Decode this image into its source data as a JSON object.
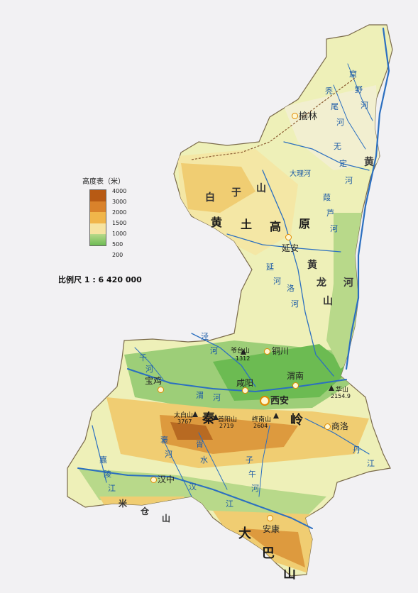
{
  "legend": {
    "title": "高度表（米）",
    "levels": [
      {
        "label": "4000",
        "color": "#b75a14"
      },
      {
        "label": "3000",
        "color": "#d9822b"
      },
      {
        "label": "2000",
        "color": "#f0b54a"
      },
      {
        "label": "1500",
        "color": "#f6e3a0"
      },
      {
        "label": "1000",
        "color": "#b8d98a"
      },
      {
        "label": "500",
        "color": "#6dbb54"
      },
      {
        "label": "200",
        "color": ""
      }
    ]
  },
  "scale": "比例尺 1 : 6 420 000",
  "cities": {
    "yulin": "榆林",
    "yanan": "延安",
    "tongchuan": "铜川",
    "baoji": "宝鸡",
    "xianyang": "咸阳",
    "xian": "西安",
    "weinan": "渭南",
    "shangluo": "商洛",
    "hanzhong": "汉中",
    "ankang": "安康"
  },
  "peaks": {
    "taibai": {
      "name": "太白山",
      "height": "3767"
    },
    "shouyang": {
      "name": "首阳山",
      "height": "2719"
    },
    "zhongnan": {
      "name": "终南山",
      "height": "2604"
    },
    "huashan": {
      "name": "华山",
      "height": "2154.9"
    },
    "yetai": {
      "name": "爷台山",
      "height": "1312"
    }
  },
  "regions": {
    "loess": [
      "黄",
      "土",
      "高",
      "原"
    ],
    "baiyu": [
      "白",
      "于",
      "山"
    ],
    "qinling": [
      "秦",
      "岭"
    ],
    "daba": [
      "大",
      "巴",
      "山"
    ],
    "huanglong": [
      "黄",
      "龙",
      "山"
    ],
    "micang": [
      "米",
      "仓",
      "山"
    ]
  },
  "rivers": {
    "huanghe": [
      "黄",
      "河"
    ],
    "wuding": [
      "无",
      "定",
      "河"
    ],
    "dali": "大理河",
    "yanhe": [
      "延",
      "河"
    ],
    "luohe": [
      "洛",
      "河"
    ],
    "jinghe": [
      "泾",
      "河"
    ],
    "weihe": [
      "渭",
      "河"
    ],
    "hanjiang": [
      "汉",
      "江"
    ],
    "danjiang": [
      "丹",
      "江"
    ],
    "kuye": [
      "窟",
      "野",
      "河"
    ],
    "tuwei": [
      "秃",
      "尾",
      "河"
    ],
    "jialu": [
      "葭",
      "芦",
      "河"
    ],
    "qianhe": [
      "千",
      "河"
    ],
    "jialing": [
      "嘉",
      "陵",
      "江"
    ],
    "bao": [
      "褒",
      "河"
    ],
    "xushui": [
      "胥",
      "水"
    ],
    "ziwu": [
      "子",
      "午",
      "河"
    ]
  },
  "colors": {
    "plateau": "#f4e7a5",
    "highland": "#f0cd72",
    "mountain": "#dd9a3e",
    "peak": "#b86a22",
    "valley": "#9dce78",
    "basin": "#6cbb52",
    "river": "#2b6fc0",
    "lake": "#3d8fe0"
  }
}
